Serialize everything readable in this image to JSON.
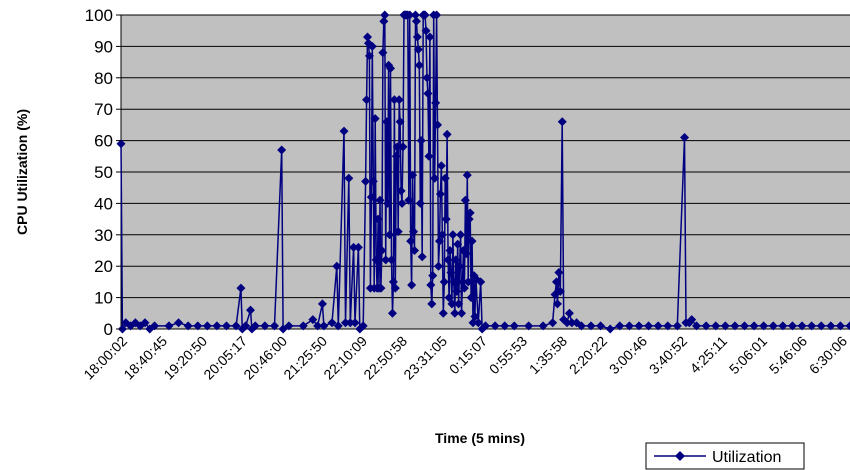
{
  "chart_data": {
    "type": "line",
    "title": "",
    "xlabel": "Time (5 mins)",
    "ylabel": "CPU Utilization (%)",
    "ylim": [
      0,
      100
    ],
    "yticks": [
      0,
      10,
      20,
      30,
      40,
      50,
      60,
      70,
      80,
      90,
      100
    ],
    "grid": true,
    "legend": "bottom-right",
    "plot_background": "#c0c0c0",
    "series_color": "#000080",
    "x_tick_labels": [
      "18:00:02",
      "18:40:45",
      "19:20:50",
      "20:05:17",
      "20:46:00",
      "21:25:50",
      "22:10:09",
      "22:50:58",
      "23:31:05",
      "0:15:07",
      "0:55:53",
      "1:35:58",
      "2:20:22",
      "3:00:46",
      "3:40:52",
      "4:25:11",
      "5:06:01",
      "5:46:06",
      "6:30:06"
    ],
    "x_range": [
      0,
      152
    ],
    "series": [
      {
        "name": "Utilization",
        "marker": "diamond",
        "points": [
          [
            0,
            59
          ],
          [
            0.3,
            0
          ],
          [
            1,
            2
          ],
          [
            2,
            1
          ],
          [
            3,
            2
          ],
          [
            4,
            1
          ],
          [
            5,
            2
          ],
          [
            6,
            0
          ],
          [
            7,
            1
          ],
          [
            10,
            1
          ],
          [
            12,
            2
          ],
          [
            14,
            1
          ],
          [
            16,
            1
          ],
          [
            18,
            1
          ],
          [
            20,
            1
          ],
          [
            22,
            1
          ],
          [
            24,
            1
          ],
          [
            25,
            13
          ],
          [
            25.3,
            0
          ],
          [
            26,
            1
          ],
          [
            27,
            6
          ],
          [
            27.3,
            0
          ],
          [
            28,
            1
          ],
          [
            30,
            1
          ],
          [
            32,
            1
          ],
          [
            33.5,
            57
          ],
          [
            33.8,
            0
          ],
          [
            35,
            1
          ],
          [
            38,
            1
          ],
          [
            40,
            3
          ],
          [
            41,
            1
          ],
          [
            42,
            8
          ],
          [
            42.3,
            1
          ],
          [
            44,
            2
          ],
          [
            45,
            20
          ],
          [
            45.3,
            1
          ],
          [
            46.5,
            63
          ],
          [
            46.8,
            2
          ],
          [
            47.5,
            48
          ],
          [
            47.8,
            2
          ],
          [
            48.5,
            26
          ],
          [
            48.8,
            2
          ],
          [
            49.5,
            26
          ],
          [
            49.8,
            0
          ],
          [
            50.5,
            1
          ],
          [
            51,
            47
          ],
          [
            51.2,
            73
          ],
          [
            51.4,
            93
          ],
          [
            51.6,
            91
          ],
          [
            51.8,
            87
          ],
          [
            52,
            13
          ],
          [
            52.2,
            42
          ],
          [
            52.4,
            90
          ],
          [
            52.6,
            47
          ],
          [
            52.8,
            13
          ],
          [
            53,
            67
          ],
          [
            53.2,
            22
          ],
          [
            53.4,
            13
          ],
          [
            53.6,
            35
          ],
          [
            53.8,
            13
          ],
          [
            54,
            41
          ],
          [
            54.2,
            13
          ],
          [
            54.4,
            25
          ],
          [
            54.6,
            88
          ],
          [
            54.8,
            98
          ],
          [
            55,
            100
          ],
          [
            55.2,
            22
          ],
          [
            55.4,
            66
          ],
          [
            55.6,
            40
          ],
          [
            55.8,
            84
          ],
          [
            56,
            30
          ],
          [
            56.2,
            83
          ],
          [
            56.4,
            22
          ],
          [
            56.6,
            5
          ],
          [
            56.8,
            15
          ],
          [
            57,
            73
          ],
          [
            57.2,
            13
          ],
          [
            57.4,
            55
          ],
          [
            57.6,
            58
          ],
          [
            57.8,
            31
          ],
          [
            58,
            73
          ],
          [
            58.2,
            66
          ],
          [
            58.4,
            44
          ],
          [
            58.6,
            40
          ],
          [
            58.8,
            58
          ],
          [
            59,
            100
          ],
          [
            59.2,
            100
          ],
          [
            59.4,
            100
          ],
          [
            59.6,
            100
          ],
          [
            59.8,
            100
          ],
          [
            60,
            41
          ],
          [
            60.2,
            100
          ],
          [
            60.4,
            28
          ],
          [
            60.6,
            14
          ],
          [
            60.8,
            49
          ],
          [
            61,
            31
          ],
          [
            61.2,
            25
          ],
          [
            61.4,
            100
          ],
          [
            61.6,
            98
          ],
          [
            61.8,
            93
          ],
          [
            62,
            89
          ],
          [
            62.2,
            84
          ],
          [
            62.4,
            40
          ],
          [
            62.6,
            60
          ],
          [
            62.8,
            23
          ],
          [
            63,
            100
          ],
          [
            63.2,
            100
          ],
          [
            63.4,
            100
          ],
          [
            63.6,
            95
          ],
          [
            63.8,
            80
          ],
          [
            64,
            75
          ],
          [
            64.2,
            55
          ],
          [
            64.4,
            93
          ],
          [
            64.6,
            14
          ],
          [
            64.8,
            8
          ],
          [
            65,
            17
          ],
          [
            65.2,
            100
          ],
          [
            65.4,
            48
          ],
          [
            65.6,
            72
          ],
          [
            65.8,
            100
          ],
          [
            66,
            65
          ],
          [
            66.2,
            20
          ],
          [
            66.4,
            28
          ],
          [
            66.6,
            43
          ],
          [
            66.8,
            52
          ],
          [
            67,
            30
          ],
          [
            67.2,
            5
          ],
          [
            67.4,
            15
          ],
          [
            67.6,
            48
          ],
          [
            67.8,
            35
          ],
          [
            68,
            62
          ],
          [
            68.2,
            22
          ],
          [
            68.4,
            10
          ],
          [
            68.6,
            25
          ],
          [
            68.8,
            18
          ],
          [
            69,
            8
          ],
          [
            69.2,
            30
          ],
          [
            69.4,
            15
          ],
          [
            69.6,
            5
          ],
          [
            69.8,
            22
          ],
          [
            70,
            12
          ],
          [
            70.2,
            27
          ],
          [
            70.4,
            8
          ],
          [
            70.6,
            20
          ],
          [
            70.8,
            30
          ],
          [
            71,
            5
          ],
          [
            71.2,
            15
          ],
          [
            71.4,
            25
          ],
          [
            71.6,
            13
          ],
          [
            71.8,
            41
          ],
          [
            72,
            24
          ],
          [
            72.2,
            49
          ],
          [
            72.4,
            15
          ],
          [
            72.6,
            35
          ],
          [
            72.8,
            37
          ],
          [
            73,
            10
          ],
          [
            73.2,
            28
          ],
          [
            73.4,
            2
          ],
          [
            73.6,
            17
          ],
          [
            73.8,
            4
          ],
          [
            74,
            16
          ],
          [
            74.5,
            2
          ],
          [
            75,
            15
          ],
          [
            75.3,
            0
          ],
          [
            76,
            1
          ],
          [
            78,
            1
          ],
          [
            80,
            1
          ],
          [
            82,
            1
          ],
          [
            85,
            1
          ],
          [
            88,
            1
          ],
          [
            90,
            2
          ],
          [
            90.5,
            11
          ],
          [
            90.8,
            15
          ],
          [
            91,
            8
          ],
          [
            91.3,
            18
          ],
          [
            91.6,
            12
          ],
          [
            92,
            66
          ],
          [
            92.3,
            3
          ],
          [
            93,
            2
          ],
          [
            93.5,
            5
          ],
          [
            94,
            2
          ],
          [
            95,
            2
          ],
          [
            96,
            1
          ],
          [
            98,
            1
          ],
          [
            100,
            1
          ],
          [
            102,
            0
          ],
          [
            104,
            1
          ],
          [
            106,
            1
          ],
          [
            108,
            1
          ],
          [
            110,
            1
          ],
          [
            112,
            1
          ],
          [
            114,
            1
          ],
          [
            116,
            1
          ],
          [
            117.5,
            61
          ],
          [
            117.8,
            2
          ],
          [
            118.5,
            2
          ],
          [
            119,
            3
          ],
          [
            120,
            1
          ],
          [
            122,
            1
          ],
          [
            124,
            1
          ],
          [
            126,
            1
          ],
          [
            128,
            1
          ],
          [
            130,
            1
          ],
          [
            132,
            1
          ],
          [
            134,
            1
          ],
          [
            136,
            1
          ],
          [
            138,
            1
          ],
          [
            140,
            1
          ],
          [
            142,
            1
          ],
          [
            144,
            1
          ],
          [
            146,
            1
          ],
          [
            148,
            1
          ],
          [
            150,
            1
          ],
          [
            152,
            1
          ]
        ]
      }
    ]
  }
}
